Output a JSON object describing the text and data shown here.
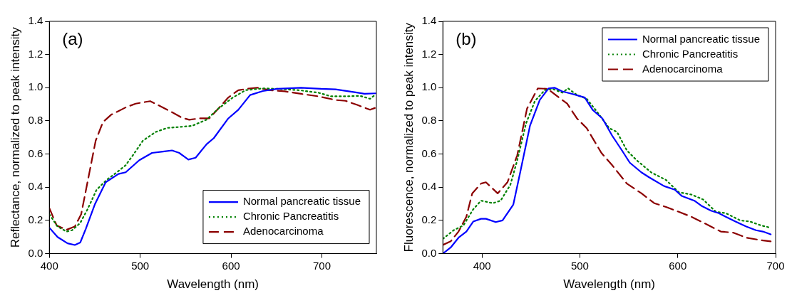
{
  "chart_data": [
    {
      "type": "line",
      "xlabel": "Wavelength (nm)",
      "ylabel": "Reflectance, normalized to peak intensity",
      "annotations": [
        "(a)"
      ],
      "xlim": [
        400,
        760
      ],
      "xticks": [
        400,
        500,
        600,
        700
      ],
      "ylim": [
        0,
        1.4
      ],
      "yticks": [
        {
          "value": 0,
          "label": "0.0"
        },
        {
          "value": 0.2,
          "label": "0.2"
        },
        {
          "value": 0.4,
          "label": "0.4"
        },
        {
          "value": 0.6,
          "label": "0.6"
        },
        {
          "value": 0.8,
          "label": "0.8"
        },
        {
          "value": 1,
          "label": "1.0"
        },
        {
          "value": 1.2,
          "label": "1.2"
        },
        {
          "value": 1.4,
          "label": "1.4"
        }
      ],
      "grid": false,
      "legend": "bottom right",
      "marker": "none",
      "series": [
        {
          "name": "Normal pancreatic tissue",
          "color": "#0000ff",
          "line_style": "solid",
          "x": [
            400,
            409,
            420,
            428,
            434,
            440,
            450,
            462,
            476,
            484,
            499,
            513,
            525,
            535,
            543,
            553,
            561,
            573,
            581,
            597,
            608,
            621,
            635,
            651,
            677,
            699,
            715,
            736,
            747,
            759
          ],
          "values": [
            0.156,
            0.1,
            0.062,
            0.052,
            0.067,
            0.148,
            0.296,
            0.43,
            0.48,
            0.49,
            0.563,
            0.607,
            0.615,
            0.622,
            0.607,
            0.567,
            0.578,
            0.659,
            0.696,
            0.815,
            0.867,
            0.956,
            0.98,
            0.993,
            1.0,
            0.993,
            0.99,
            0.973,
            0.963,
            0.966
          ]
        },
        {
          "name": "Chronic Pancreatitis",
          "color": "#008000",
          "line_style": "dotted",
          "x": [
            400,
            409,
            419,
            425,
            434,
            442,
            452,
            463,
            474,
            484,
            492,
            503,
            517,
            530,
            543,
            557,
            573,
            586,
            602,
            616,
            635,
            651,
            675,
            696,
            710,
            726,
            742,
            753,
            759
          ],
          "values": [
            0.237,
            0.163,
            0.133,
            0.141,
            0.185,
            0.267,
            0.385,
            0.444,
            0.489,
            0.533,
            0.593,
            0.681,
            0.733,
            0.758,
            0.763,
            0.77,
            0.807,
            0.874,
            0.941,
            0.985,
            0.996,
            0.993,
            0.985,
            0.97,
            0.948,
            0.948,
            0.951,
            0.933,
            0.959
          ]
        },
        {
          "name": "Adenocarcinoma",
          "color": "#8b0000",
          "line_style": "dashed",
          "x": [
            400,
            408,
            419,
            428,
            435,
            443,
            451,
            459,
            468,
            484,
            495,
            511,
            522,
            535,
            546,
            554,
            565,
            576,
            586,
            597,
            608,
            621,
            629,
            643,
            659,
            677,
            696,
            715,
            726,
            739,
            753,
            759
          ],
          "values": [
            0.274,
            0.17,
            0.144,
            0.163,
            0.237,
            0.459,
            0.681,
            0.793,
            0.837,
            0.881,
            0.904,
            0.919,
            0.889,
            0.852,
            0.819,
            0.807,
            0.815,
            0.815,
            0.874,
            0.941,
            0.985,
            0.996,
            1.0,
            0.985,
            0.978,
            0.963,
            0.948,
            0.926,
            0.921,
            0.896,
            0.867,
            0.879
          ]
        }
      ]
    },
    {
      "type": "line",
      "xlabel": "Wavelength (nm)",
      "ylabel": "Fluorescence, normalized to peak intensity",
      "annotations": [
        "(b)"
      ],
      "xlim": [
        360,
        700
      ],
      "xticks": [
        400,
        500,
        600,
        700
      ],
      "ylim": [
        0,
        1.4
      ],
      "yticks": [
        {
          "value": 0,
          "label": "0.0"
        },
        {
          "value": 0.2,
          "label": "0.2"
        },
        {
          "value": 0.4,
          "label": "0.4"
        },
        {
          "value": 0.6,
          "label": "0.6"
        },
        {
          "value": 0.8,
          "label": "0.8"
        },
        {
          "value": 1,
          "label": "1.0"
        },
        {
          "value": 1.2,
          "label": "1.2"
        },
        {
          "value": 1.4,
          "label": "1.4"
        }
      ],
      "grid": false,
      "legend": "top right",
      "marker": "none",
      "series": [
        {
          "name": "Normal pancreatic tissue",
          "color": "#0000ff",
          "line_style": "solid",
          "x": [
            360,
            368,
            376,
            384,
            391,
            399,
            404,
            414,
            421,
            432,
            439,
            449,
            459,
            468,
            474,
            482,
            492,
            505,
            513,
            523,
            533,
            543,
            551,
            563,
            571,
            586,
            597,
            604,
            617,
            624,
            634,
            642,
            649,
            659,
            670,
            680,
            687,
            695
          ],
          "values": [
            0.0,
            0.037,
            0.096,
            0.133,
            0.193,
            0.21,
            0.21,
            0.19,
            0.2,
            0.296,
            0.489,
            0.77,
            0.926,
            0.996,
            1.0,
            0.978,
            0.963,
            0.941,
            0.867,
            0.815,
            0.711,
            0.622,
            0.548,
            0.489,
            0.459,
            0.407,
            0.385,
            0.348,
            0.319,
            0.289,
            0.259,
            0.244,
            0.222,
            0.193,
            0.163,
            0.141,
            0.133,
            0.116
          ]
        },
        {
          "name": "Chronic Pancreatitis",
          "color": "#008000",
          "line_style": "dotted",
          "x": [
            360,
            371,
            381,
            391,
            399,
            411,
            419,
            429,
            436,
            445,
            454,
            464,
            472,
            482,
            488,
            497,
            507,
            517,
            530,
            538,
            548,
            558,
            573,
            588,
            601,
            614,
            626,
            639,
            649,
            664,
            674,
            685,
            695
          ],
          "values": [
            0.089,
            0.141,
            0.17,
            0.267,
            0.319,
            0.304,
            0.319,
            0.415,
            0.563,
            0.785,
            0.919,
            0.985,
            0.993,
            0.97,
            0.996,
            0.956,
            0.933,
            0.859,
            0.756,
            0.733,
            0.622,
            0.563,
            0.489,
            0.444,
            0.37,
            0.356,
            0.326,
            0.252,
            0.244,
            0.2,
            0.193,
            0.17,
            0.156
          ]
        },
        {
          "name": "Adenocarcinoma",
          "color": "#8b0000",
          "line_style": "dashed",
          "x": [
            360,
            368,
            376,
            384,
            390,
            399,
            404,
            416,
            426,
            436,
            446,
            457,
            467,
            477,
            487,
            497,
            507,
            522,
            533,
            548,
            563,
            576,
            588,
            601,
            614,
            629,
            644,
            657,
            670,
            685,
            695
          ],
          "values": [
            0.052,
            0.074,
            0.133,
            0.222,
            0.363,
            0.422,
            0.43,
            0.363,
            0.43,
            0.593,
            0.874,
            0.996,
            0.993,
            0.948,
            0.904,
            0.815,
            0.756,
            0.607,
            0.533,
            0.422,
            0.363,
            0.304,
            0.281,
            0.252,
            0.222,
            0.178,
            0.133,
            0.126,
            0.096,
            0.081,
            0.074
          ]
        }
      ]
    }
  ]
}
